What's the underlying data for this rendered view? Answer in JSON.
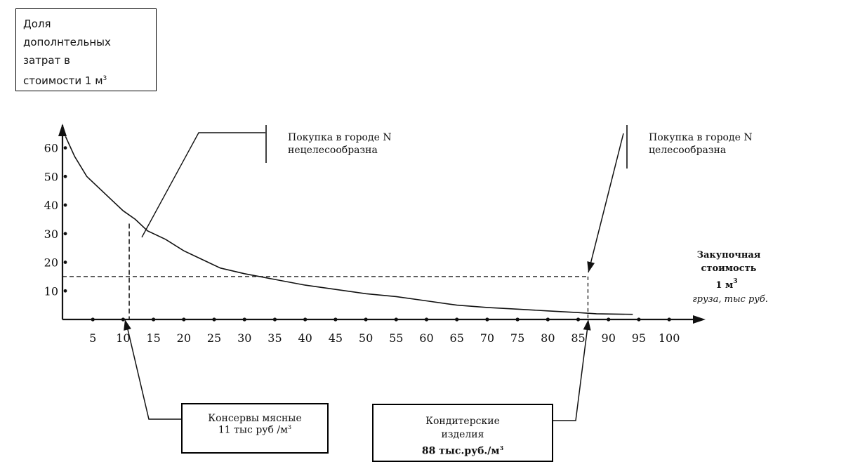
{
  "chart_data": {
    "type": "line",
    "ylabel_lines": [
      "Доля",
      "дополнтельных",
      "затрат  в",
      "стоимости 1 м",
      "3"
    ],
    "xlabel_lines": [
      "Закупочная",
      "стоимость",
      "1 м",
      "3",
      "груза, тыс руб."
    ],
    "x_ticks": [
      5,
      10,
      15,
      20,
      25,
      30,
      35,
      40,
      45,
      50,
      55,
      60,
      65,
      70,
      75,
      80,
      85,
      90,
      95,
      100
    ],
    "y_ticks": [
      10,
      20,
      30,
      40,
      50,
      60
    ],
    "x": [
      0.5,
      2,
      4,
      6,
      8,
      10,
      12,
      14,
      17,
      20,
      23,
      26,
      30,
      35,
      40,
      45,
      50,
      55,
      60,
      65,
      70,
      75,
      80,
      85,
      88,
      94
    ],
    "y": [
      64,
      57,
      50,
      46,
      42,
      38,
      35,
      31,
      28,
      24,
      21,
      18,
      16,
      14,
      12,
      10.5,
      9,
      8,
      6.5,
      5,
      4.2,
      3.6,
      3,
      2.4,
      2,
      1.8
    ],
    "threshold_y": 15,
    "markers": [
      {
        "x": 11
      },
      {
        "x": 88
      }
    ],
    "xlim": [
      0,
      106
    ],
    "ylim": [
      0,
      68
    ],
    "grid": false,
    "annotations": {
      "left_region": [
        "Покупка в городе N",
        "нецелесообразна"
      ],
      "right_region": [
        "Покупка в городе N",
        "целесообразна"
      ]
    },
    "callouts": [
      {
        "lines": [
          "Консервы мясные",
          "11 тыс руб /м",
          "3"
        ]
      },
      {
        "lines": [
          "Кондитерские",
          "изделия",
          "88 тыс.руб./м",
          "3"
        ]
      }
    ]
  }
}
